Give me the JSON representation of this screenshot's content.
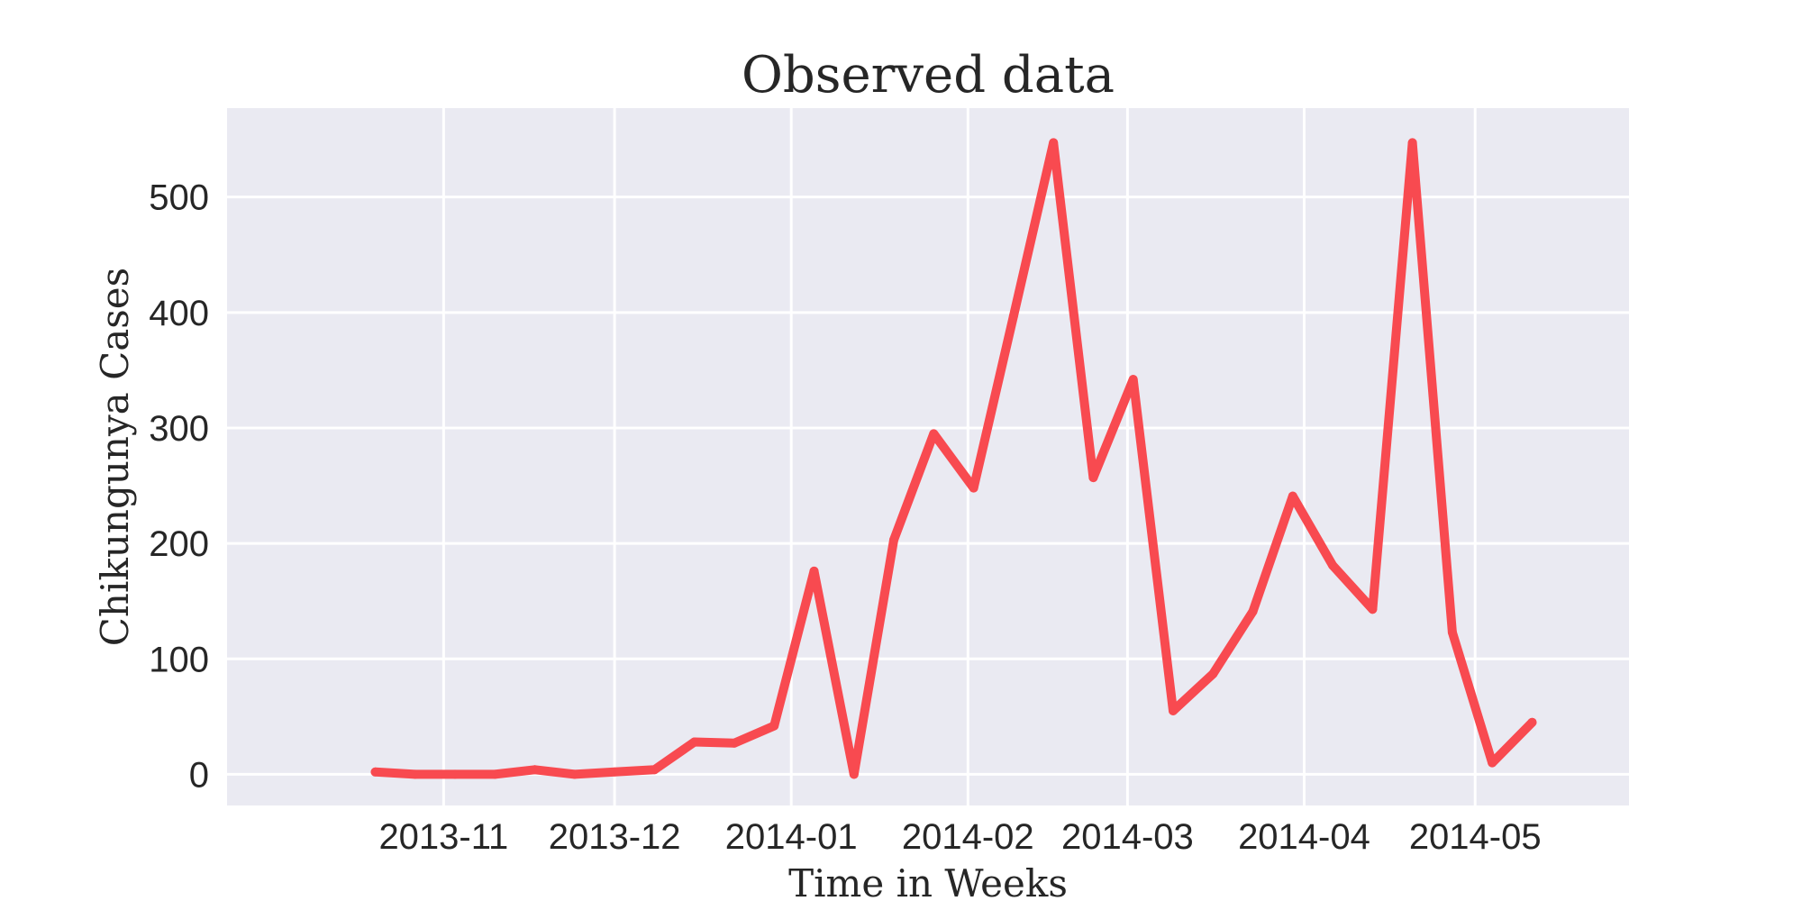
{
  "chart_data": {
    "type": "line",
    "title": "Observed data",
    "xlabel": "Time in Weeks",
    "ylabel": "Chikungunya Cases",
    "ylim": [
      -27,
      577
    ],
    "xlim": [
      "2013-09-24",
      "2014-05-28"
    ],
    "grid": true,
    "x_ticks": [
      "2013-11-01",
      "2013-12-01",
      "2014-01-01",
      "2014-02-01",
      "2014-03-01",
      "2014-04-01",
      "2014-05-01"
    ],
    "x_tick_labels": [
      "2013-11",
      "2013-12",
      "2014-01",
      "2014-02",
      "2014-03",
      "2014-04",
      "2014-05"
    ],
    "y_ticks": [
      0,
      100,
      200,
      300,
      400,
      500
    ],
    "y_tick_labels": [
      "0",
      "100",
      "200",
      "300",
      "400",
      "500"
    ],
    "series": [
      {
        "color": "#f84a50",
        "x": [
          "2013-10-20",
          "2013-10-27",
          "2013-11-03",
          "2013-11-10",
          "2013-11-17",
          "2013-11-24",
          "2013-12-01",
          "2013-12-08",
          "2013-12-15",
          "2013-12-22",
          "2013-12-29",
          "2014-01-05",
          "2014-01-12",
          "2014-01-19",
          "2014-01-26",
          "2014-02-02",
          "2014-02-09",
          "2014-02-16",
          "2014-02-23",
          "2014-03-02",
          "2014-03-09",
          "2014-03-16",
          "2014-03-23",
          "2014-03-30",
          "2014-04-06",
          "2014-04-13",
          "2014-04-20",
          "2014-04-27",
          "2014-05-04",
          "2014-05-11"
        ],
        "values": [
          2,
          0,
          0,
          0,
          4,
          0,
          2,
          4,
          28,
          27,
          42,
          176,
          0,
          203,
          295,
          248,
          397,
          547,
          257,
          342,
          55,
          87,
          141,
          241,
          181,
          143,
          547,
          123,
          10,
          45
        ]
      }
    ]
  },
  "colors": {
    "plot_background": "#eaeaf2",
    "grid": "#ffffff",
    "text": "#262626",
    "line": "#f84a50"
  }
}
